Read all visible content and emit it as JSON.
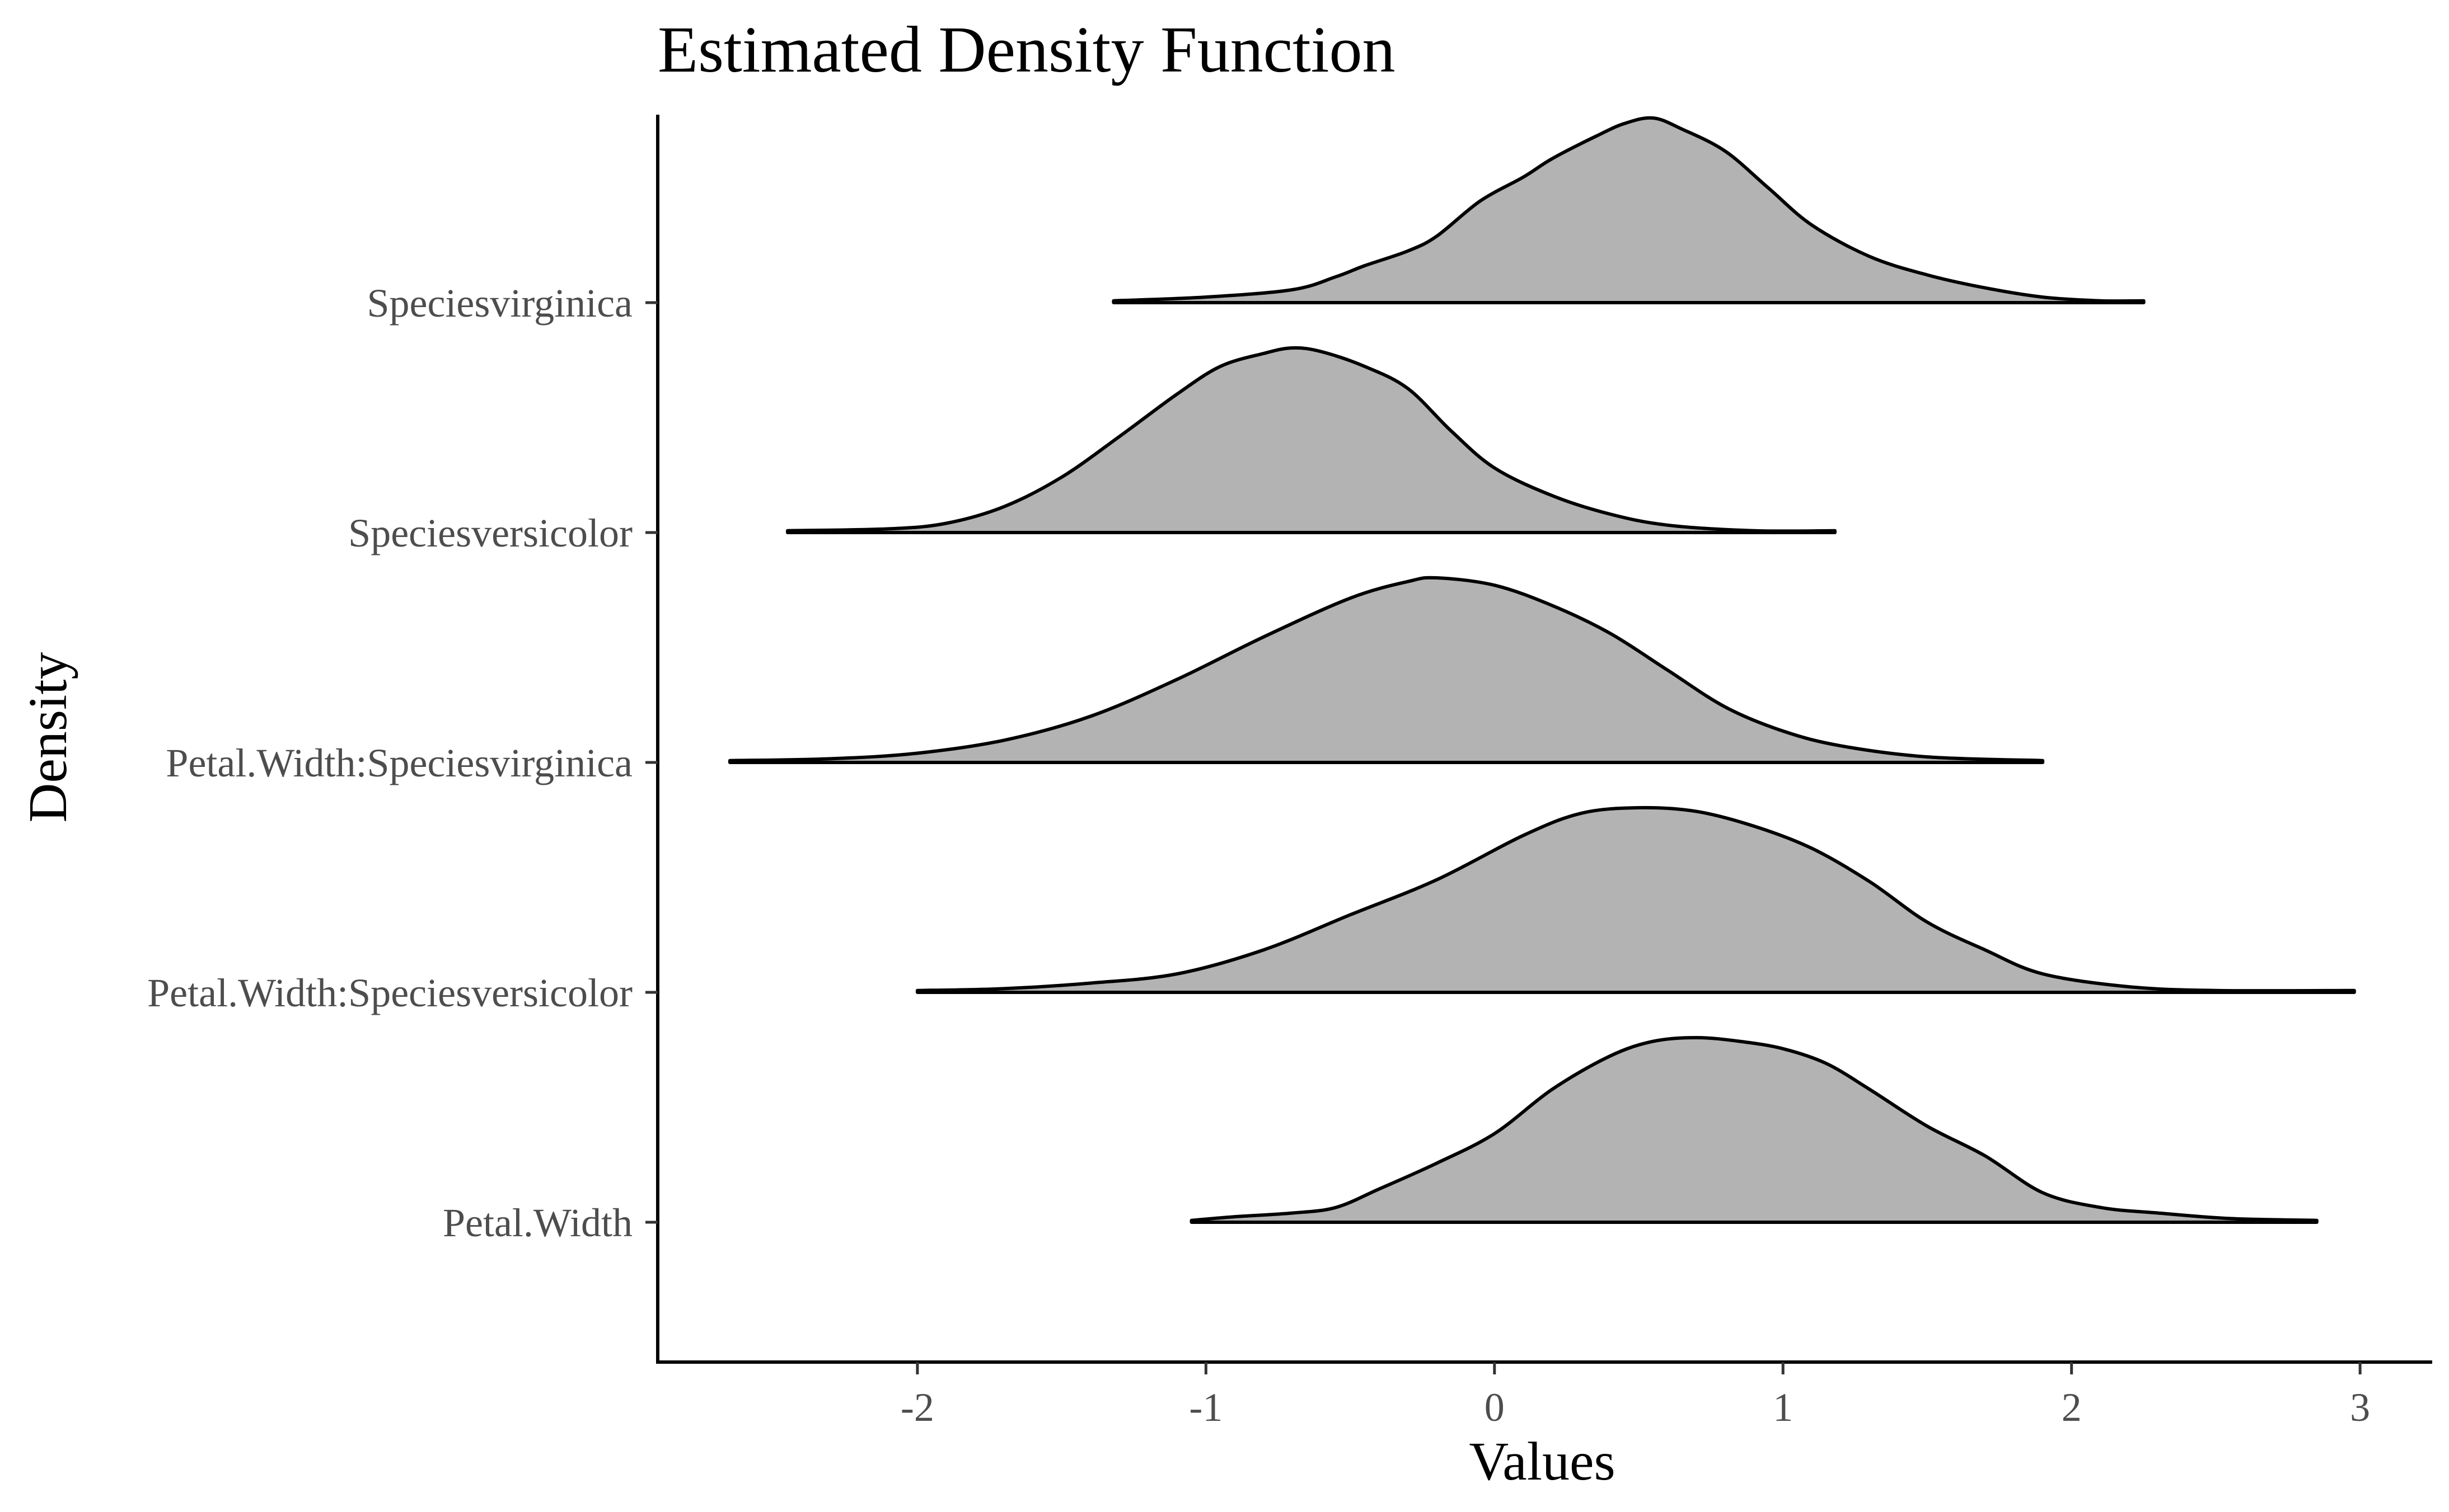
{
  "chart_data": {
    "type": "ridgeline",
    "title": "Estimated Density Function",
    "xlabel": "Values",
    "ylabel": "Density",
    "xlim": [
      -2.9,
      3.25
    ],
    "xticks": [
      -2,
      -1,
      0,
      1,
      2,
      3
    ],
    "xtick_labels": [
      "-2",
      "-1",
      "0",
      "1",
      "2",
      "3"
    ],
    "grid": false,
    "legend": "none",
    "fill_color": "#b3b3b3",
    "line_color": "#000000",
    "categories": [
      "Petal.Width",
      "Petal.Width:Speciesversicolor",
      "Petal.Width:Speciesvirginica",
      "Speciesversicolor",
      "Speciesvirginica"
    ],
    "series": [
      {
        "name": "Petal.Width",
        "points": [
          [
            -1.05,
            0.01
          ],
          [
            -0.9,
            0.03
          ],
          [
            -0.7,
            0.05
          ],
          [
            -0.55,
            0.08
          ],
          [
            -0.4,
            0.18
          ],
          [
            -0.2,
            0.32
          ],
          [
            0.0,
            0.48
          ],
          [
            0.2,
            0.72
          ],
          [
            0.4,
            0.9
          ],
          [
            0.55,
            0.98
          ],
          [
            0.7,
            1.0
          ],
          [
            0.85,
            0.98
          ],
          [
            1.0,
            0.94
          ],
          [
            1.15,
            0.86
          ],
          [
            1.3,
            0.72
          ],
          [
            1.5,
            0.52
          ],
          [
            1.7,
            0.36
          ],
          [
            1.9,
            0.16
          ],
          [
            2.1,
            0.08
          ],
          [
            2.3,
            0.05
          ],
          [
            2.55,
            0.02
          ],
          [
            2.85,
            0.01
          ]
        ]
      },
      {
        "name": "Petal.Width:Speciesversicolor",
        "points": [
          [
            -2.0,
            0.01
          ],
          [
            -1.7,
            0.02
          ],
          [
            -1.4,
            0.05
          ],
          [
            -1.1,
            0.1
          ],
          [
            -0.8,
            0.23
          ],
          [
            -0.5,
            0.42
          ],
          [
            -0.2,
            0.61
          ],
          [
            0.1,
            0.85
          ],
          [
            0.3,
            0.97
          ],
          [
            0.5,
            1.0
          ],
          [
            0.7,
            0.98
          ],
          [
            0.9,
            0.9
          ],
          [
            1.1,
            0.78
          ],
          [
            1.3,
            0.6
          ],
          [
            1.5,
            0.38
          ],
          [
            1.7,
            0.23
          ],
          [
            1.9,
            0.1
          ],
          [
            2.2,
            0.03
          ],
          [
            2.5,
            0.01
          ],
          [
            2.98,
            0.01
          ]
        ]
      },
      {
        "name": "Petal.Width:Speciesvirginica",
        "points": [
          [
            -2.65,
            0.01
          ],
          [
            -2.3,
            0.02
          ],
          [
            -2.0,
            0.05
          ],
          [
            -1.7,
            0.12
          ],
          [
            -1.4,
            0.25
          ],
          [
            -1.1,
            0.45
          ],
          [
            -0.8,
            0.68
          ],
          [
            -0.5,
            0.89
          ],
          [
            -0.3,
            0.98
          ],
          [
            -0.2,
            1.0
          ],
          [
            0.0,
            0.96
          ],
          [
            0.2,
            0.85
          ],
          [
            0.4,
            0.7
          ],
          [
            0.6,
            0.5
          ],
          [
            0.8,
            0.3
          ],
          [
            1.0,
            0.17
          ],
          [
            1.2,
            0.09
          ],
          [
            1.5,
            0.03
          ],
          [
            1.9,
            0.01
          ]
        ]
      },
      {
        "name": "Speciesversicolor",
        "points": [
          [
            -2.45,
            0.01
          ],
          [
            -2.1,
            0.02
          ],
          [
            -1.9,
            0.05
          ],
          [
            -1.7,
            0.14
          ],
          [
            -1.5,
            0.3
          ],
          [
            -1.3,
            0.52
          ],
          [
            -1.1,
            0.75
          ],
          [
            -0.95,
            0.9
          ],
          [
            -0.8,
            0.97
          ],
          [
            -0.7,
            1.0
          ],
          [
            -0.6,
            0.98
          ],
          [
            -0.45,
            0.9
          ],
          [
            -0.3,
            0.78
          ],
          [
            -0.15,
            0.55
          ],
          [
            0.0,
            0.35
          ],
          [
            0.2,
            0.2
          ],
          [
            0.4,
            0.1
          ],
          [
            0.6,
            0.04
          ],
          [
            0.9,
            0.01
          ],
          [
            1.18,
            0.01
          ]
        ]
      },
      {
        "name": "Speciesvirginica",
        "points": [
          [
            -1.32,
            0.01
          ],
          [
            -1.0,
            0.03
          ],
          [
            -0.7,
            0.07
          ],
          [
            -0.55,
            0.14
          ],
          [
            -0.45,
            0.2
          ],
          [
            -0.3,
            0.28
          ],
          [
            -0.2,
            0.36
          ],
          [
            -0.05,
            0.55
          ],
          [
            0.1,
            0.68
          ],
          [
            0.2,
            0.78
          ],
          [
            0.35,
            0.9
          ],
          [
            0.45,
            0.97
          ],
          [
            0.55,
            1.0
          ],
          [
            0.65,
            0.94
          ],
          [
            0.8,
            0.82
          ],
          [
            0.95,
            0.62
          ],
          [
            1.1,
            0.42
          ],
          [
            1.3,
            0.25
          ],
          [
            1.5,
            0.15
          ],
          [
            1.7,
            0.08
          ],
          [
            1.9,
            0.03
          ],
          [
            2.1,
            0.01
          ],
          [
            2.25,
            0.01
          ]
        ]
      }
    ]
  }
}
